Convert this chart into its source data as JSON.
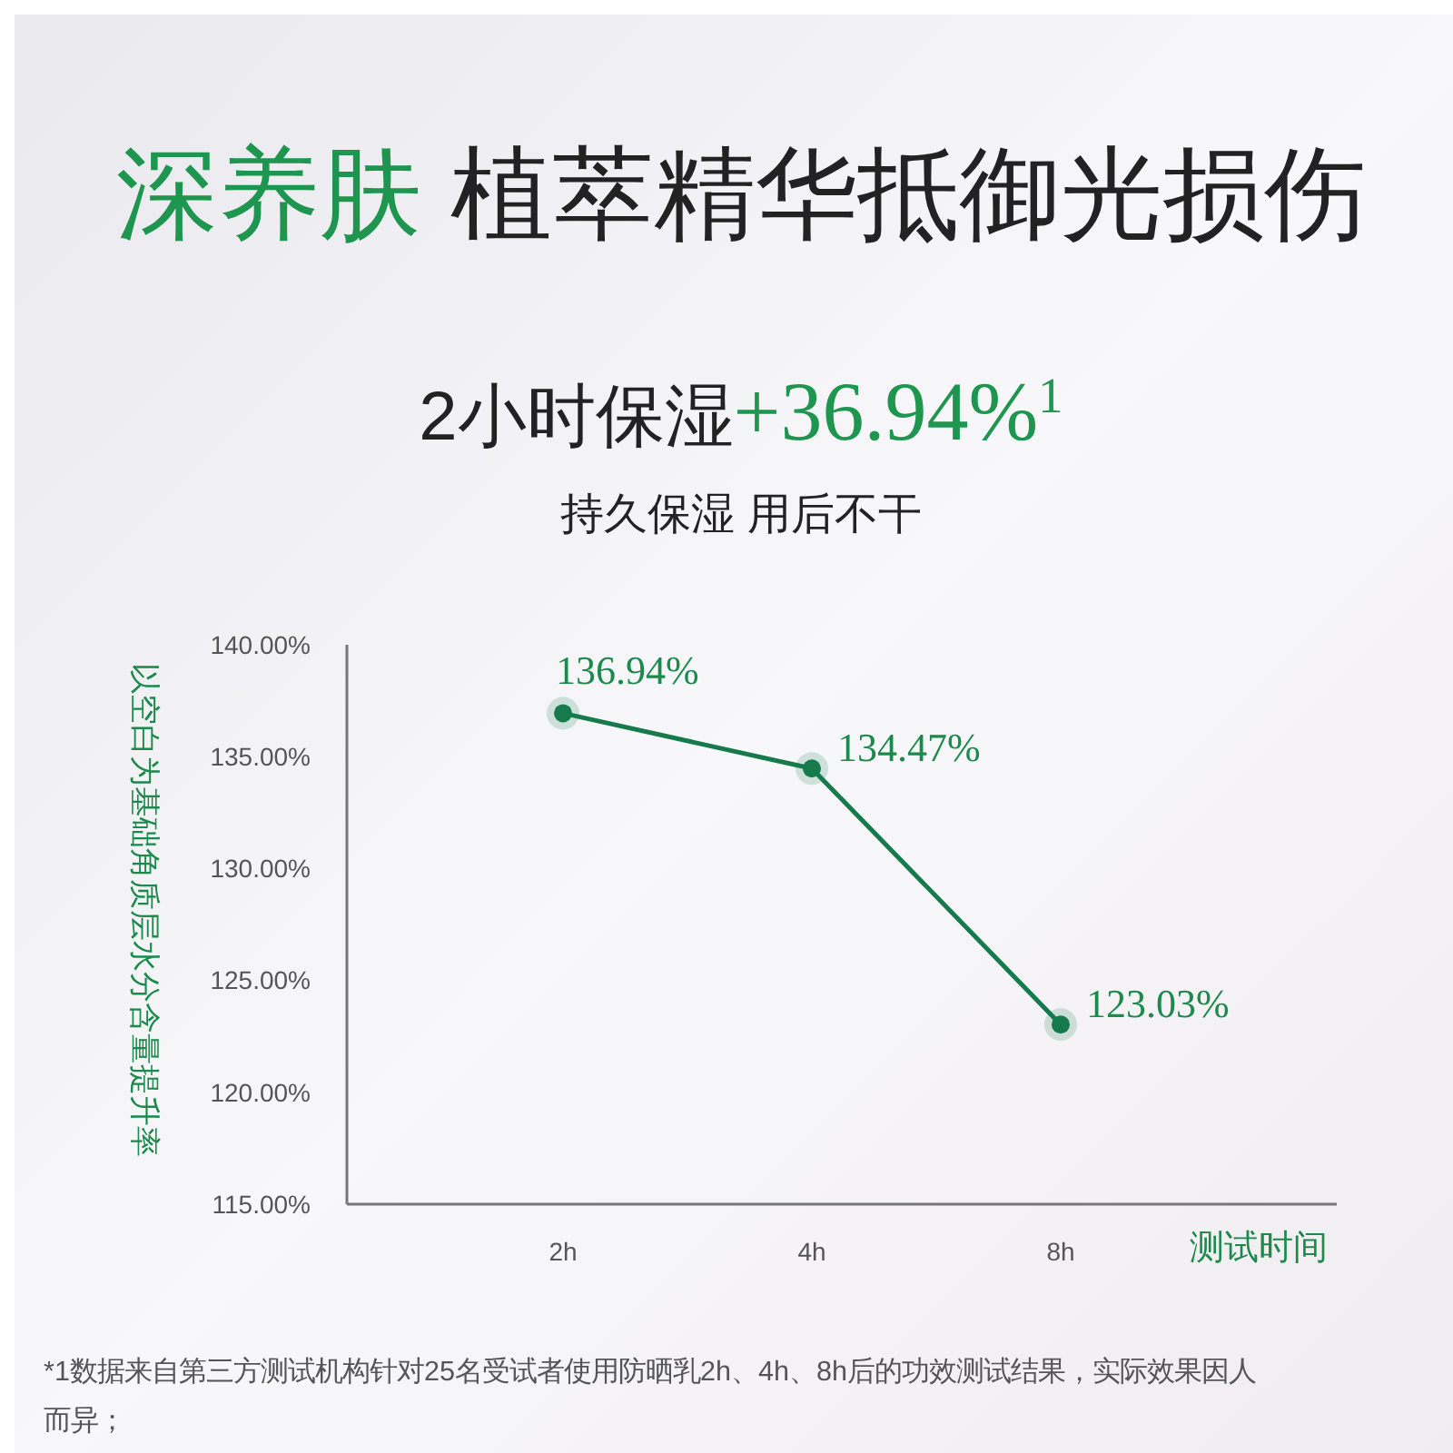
{
  "chart_data": {
    "type": "line",
    "title": "深养肤 植萃精华抵御光损伤",
    "subtitle": "2小时保湿+36.94%$^{1}$",
    "annotations": [
      "持久保湿 用后不干",
      "*1数据来自第三方测试机构针对25名受试者使用防晒乳2h、4h、8h后的功效测试结果，实际效果因人而异；"
    ],
    "ylabel": "以空白为基础角质层水分含量提升率",
    "xlabel": "测试时间",
    "categories": [
      "2h",
      "4h",
      "8h"
    ],
    "series": [
      {
        "color": "#157a4c",
        "values": [
          136.94,
          134.47,
          123.03
        ],
        "value_labels": [
          "136.94%",
          "134.47%",
          "123.03%"
        ]
      }
    ],
    "ylim": [
      115,
      140
    ],
    "yticks": [
      {
        "value": 115,
        "label": "115.00%"
      },
      {
        "value": 120,
        "label": "120.00%"
      },
      {
        "value": 125,
        "label": "125.00%"
      },
      {
        "value": 130,
        "label": "130.00%"
      },
      {
        "value": 135,
        "label": "135.00%"
      },
      {
        "value": 140,
        "label": "140.00%"
      }
    ],
    "grid": false,
    "marker": "circle",
    "line_style": "solid"
  }
}
